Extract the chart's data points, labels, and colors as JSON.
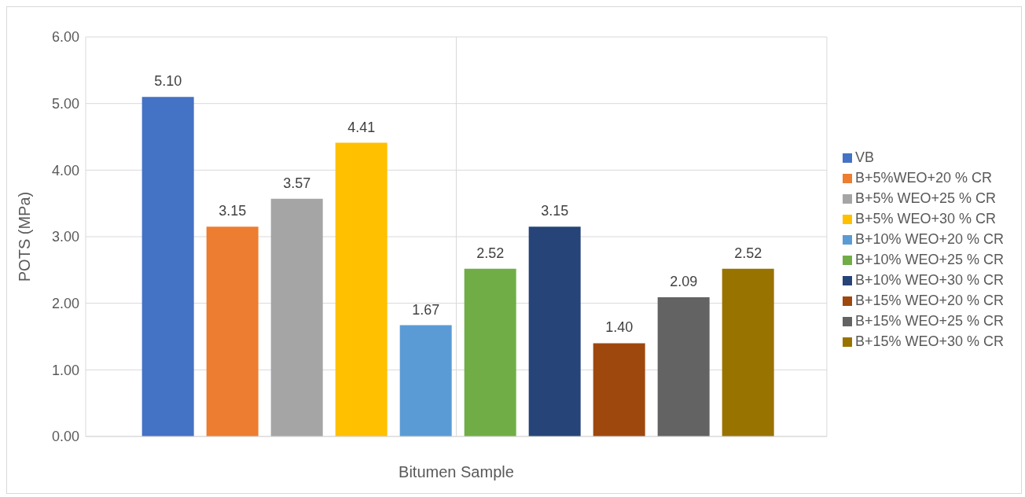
{
  "chart_data": {
    "type": "bar",
    "xlabel": "Bitumen Sample",
    "ylabel": "POTS (MPa)",
    "categories": [
      null
    ],
    "series": [
      {
        "name": "VB",
        "color": "#4472c4",
        "values": [
          5.1
        ],
        "value_labels": [
          "5.10"
        ]
      },
      {
        "name": "B+5%WEO+20 % CR",
        "color": "#ed7d31",
        "values": [
          3.15
        ],
        "value_labels": [
          "3.15"
        ]
      },
      {
        "name": "B+5% WEO+25 % CR",
        "color": "#a5a5a5",
        "values": [
          3.57
        ],
        "value_labels": [
          "3.57"
        ]
      },
      {
        "name": "B+5% WEO+30 % CR",
        "color": "#ffc000",
        "values": [
          4.41
        ],
        "value_labels": [
          "4.41"
        ]
      },
      {
        "name": "B+10% WEO+20 % CR",
        "color": "#5b9bd5",
        "values": [
          1.67
        ],
        "value_labels": [
          "1.67"
        ]
      },
      {
        "name": "B+10% WEO+25 % CR",
        "color": "#70ad47",
        "values": [
          2.52
        ],
        "value_labels": [
          "2.52"
        ]
      },
      {
        "name": "B+10% WEO+30 % CR",
        "color": "#264478",
        "values": [
          3.15
        ],
        "value_labels": [
          "3.15"
        ]
      },
      {
        "name": "B+15% WEO+20 % CR",
        "color": "#9e480e",
        "values": [
          1.4
        ],
        "value_labels": [
          "1.40"
        ]
      },
      {
        "name": "B+15% WEO+25 % CR",
        "color": "#636363",
        "values": [
          2.09
        ],
        "value_labels": [
          "2.09"
        ]
      },
      {
        "name": "B+15% WEO+30 % CR",
        "color": "#997300",
        "values": [
          2.52
        ],
        "value_labels": [
          "2.52"
        ]
      }
    ],
    "ylim": [
      0,
      6
    ],
    "yticks": [
      {
        "value": 0,
        "label": "0.00"
      },
      {
        "value": 1,
        "label": "1.00"
      },
      {
        "value": 2,
        "label": "2.00"
      },
      {
        "value": 3,
        "label": "3.00"
      },
      {
        "value": 4,
        "label": "4.00"
      },
      {
        "value": 5,
        "label": "5.00"
      },
      {
        "value": 6,
        "label": "6.00"
      }
    ],
    "grid": true,
    "legend": "right"
  }
}
